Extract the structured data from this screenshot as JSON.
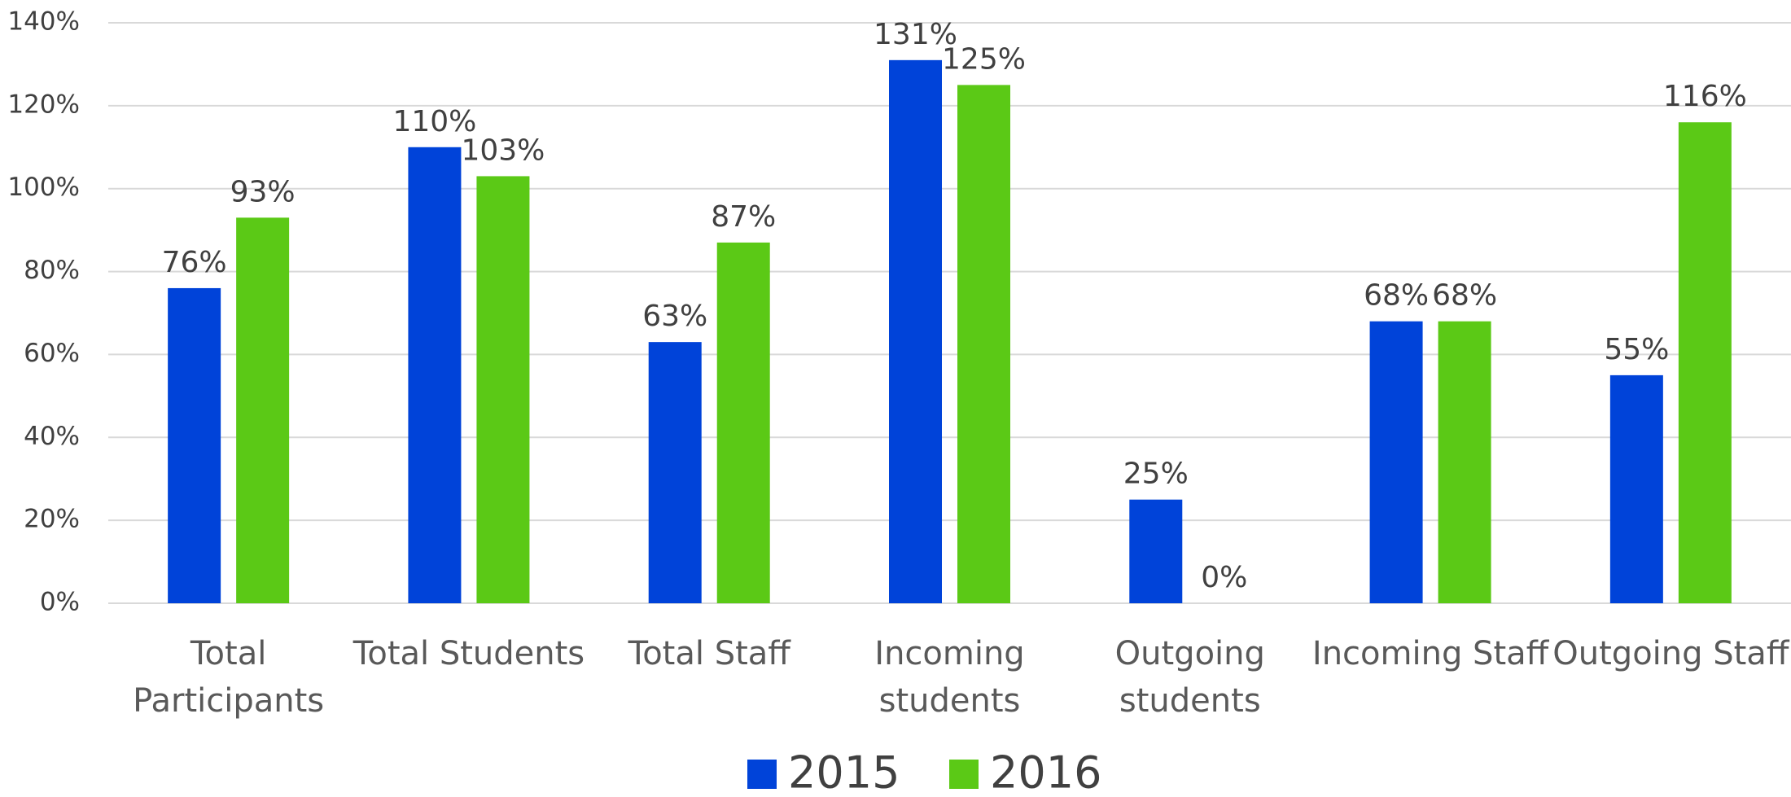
{
  "chart_data": {
    "type": "bar",
    "categories": [
      "Total Participants",
      "Total Students",
      "Total Staff",
      "Incoming students",
      "Outgoing students",
      "Incoming Staff",
      "Outgoing Staff"
    ],
    "series": [
      {
        "name": "2015",
        "color": "#0043d9",
        "values": [
          76,
          110,
          63,
          131,
          25,
          68,
          55
        ],
        "value_labels": [
          "76%",
          "110%",
          "63%",
          "131%",
          "25%",
          "68%",
          "55%"
        ]
      },
      {
        "name": "2016",
        "color": "#5bc916",
        "values": [
          93,
          103,
          87,
          125,
          0,
          68,
          116
        ],
        "value_labels": [
          "93%",
          "103%",
          "87%",
          "125%",
          "0%",
          "68%",
          "116%"
        ]
      }
    ],
    "ylim": [
      0,
      140
    ],
    "yticks": [
      {
        "value": 0,
        "label": "0%"
      },
      {
        "value": 20,
        "label": "20%"
      },
      {
        "value": 40,
        "label": "40%"
      },
      {
        "value": 60,
        "label": "60%"
      },
      {
        "value": 80,
        "label": "80%"
      },
      {
        "value": 100,
        "label": "100%"
      },
      {
        "value": 120,
        "label": "120%"
      },
      {
        "value": 140,
        "label": "140%"
      }
    ],
    "grid": true,
    "legend": "bottom"
  }
}
